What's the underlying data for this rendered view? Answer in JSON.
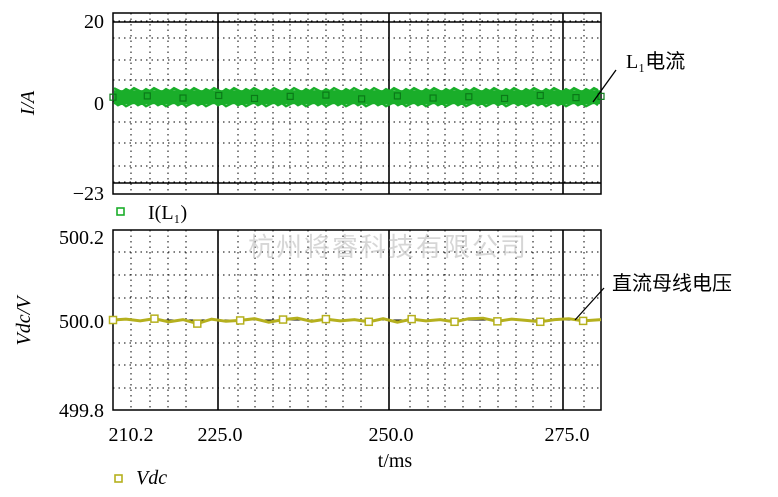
{
  "watermark": "杭州将睿科技有限公司",
  "chart_data": [
    {
      "type": "line",
      "ylabel": "I/A",
      "ylim": [
        -23,
        20
      ],
      "yticks": [
        {
          "value": 20,
          "label": "20"
        },
        {
          "value": 0,
          "label": "0"
        },
        {
          "value": -23,
          "label": "−23"
        }
      ],
      "xlim": [
        210.2,
        278.5
      ],
      "xticks": [
        210.2,
        225.0,
        250.0,
        275.0
      ],
      "grid": true,
      "series": [
        {
          "name": "I(L₁)",
          "color": "#1aae2a",
          "marker": "square",
          "description": "ripple band approx ±1 A around 0",
          "x": [
            210.2,
            215,
            220,
            225,
            230,
            235,
            240,
            245,
            250,
            255,
            260,
            265,
            270,
            275,
            278.5
          ],
          "values": [
            0,
            0.3,
            -0.2,
            0.4,
            -0.3,
            0.2,
            0.5,
            -0.4,
            0.3,
            -0.2,
            0.1,
            -0.3,
            0.4,
            -0.1,
            0.2
          ]
        }
      ],
      "annotation": "L₁电流"
    },
    {
      "type": "line",
      "ylabel": "Vdc/V",
      "ylim": [
        499.8,
        500.2
      ],
      "yticks": [
        {
          "value": 500.2,
          "label": "500.2"
        },
        {
          "value": 500.0,
          "label": "500.0"
        },
        {
          "value": 499.8,
          "label": "499.8"
        }
      ],
      "xlabel": "t/ms",
      "xlim": [
        210.2,
        278.5
      ],
      "xticks": [
        {
          "value": 210.2,
          "label": "210.2"
        },
        {
          "value": 225.0,
          "label": "225.0"
        },
        {
          "value": 250.0,
          "label": "250.0"
        },
        {
          "value": 275.0,
          "label": "275.0"
        }
      ],
      "grid": true,
      "series": [
        {
          "name": "Vdc",
          "color": "#b5b01e",
          "marker": "square",
          "x": [
            210.2,
            212,
            214,
            216,
            218,
            220,
            222,
            224,
            226,
            228,
            230,
            232,
            234,
            236,
            238,
            240,
            242,
            244,
            246,
            248,
            250,
            252,
            254,
            256,
            258,
            260,
            262,
            264,
            266,
            268,
            270,
            272,
            274,
            276,
            278.5
          ],
          "values": [
            500.0,
            500.002,
            499.998,
            500.003,
            499.996,
            500.001,
            499.992,
            500.002,
            499.997,
            499.999,
            500.003,
            499.995,
            500.001,
            500.004,
            499.997,
            500.002,
            499.998,
            500.001,
            499.996,
            500.003,
            499.995,
            500.002,
            499.998,
            500.001,
            499.996,
            500.003,
            500.004,
            499.997,
            500.002,
            499.999,
            499.996,
            500.001,
            500.003,
            499.998,
            500.001
          ]
        }
      ],
      "annotation": "直流母线电压"
    }
  ],
  "legend": [
    {
      "label": "I(L₁)",
      "color": "#1aae2a"
    },
    {
      "label": "Vdc",
      "color": "#b5b01e"
    }
  ]
}
